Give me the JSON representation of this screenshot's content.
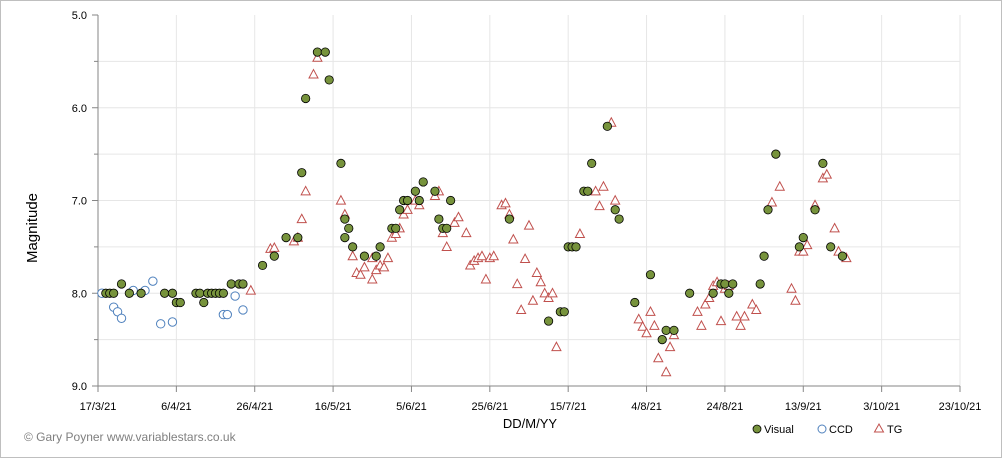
{
  "credit": "© Gary Poyner www.variablestars.co.uk",
  "chart_data": {
    "type": "scatter",
    "title": "",
    "xlabel": "DD/M/YY",
    "ylabel": "Magnitude",
    "x_axis_type": "date",
    "xlim": [
      "2021-03-17",
      "2021-10-23"
    ],
    "ylim": [
      9.0,
      5.0
    ],
    "y_inverted": true,
    "x_ticks": [
      {
        "date": "2021-03-17",
        "label": "17/3/21"
      },
      {
        "date": "2021-04-06",
        "label": "6/4/21"
      },
      {
        "date": "2021-04-26",
        "label": "26/4/21"
      },
      {
        "date": "2021-05-16",
        "label": "16/5/21"
      },
      {
        "date": "2021-06-05",
        "label": "5/6/21"
      },
      {
        "date": "2021-06-25",
        "label": "25/6/21"
      },
      {
        "date": "2021-07-15",
        "label": "15/7/21"
      },
      {
        "date": "2021-08-04",
        "label": "4/8/21"
      },
      {
        "date": "2021-08-24",
        "label": "24/8/21"
      },
      {
        "date": "2021-09-13",
        "label": "13/9/21"
      },
      {
        "date": "2021-10-03",
        "label": "3/10/21"
      },
      {
        "date": "2021-10-23",
        "label": "23/10/21"
      }
    ],
    "y_ticks": [
      {
        "value": 5.0,
        "label": "5.0"
      },
      {
        "value": 6.0,
        "label": "6.0"
      },
      {
        "value": 7.0,
        "label": "7.0"
      },
      {
        "value": 8.0,
        "label": "8.0"
      },
      {
        "value": 9.0,
        "label": "9.0"
      }
    ],
    "grid": true,
    "legend_position": "bottom-right",
    "colors": {
      "visual_fill": "#77933c",
      "visual_edge": "#000000",
      "ccd_edge": "#4f81bd",
      "tg_edge": "#c0504d",
      "grid": "#e6e6e6"
    },
    "series": [
      {
        "name": "Visual",
        "marker": "filled-circle",
        "points": [
          [
            "2021-03-19",
            8.0
          ],
          [
            "2021-03-20",
            8.0
          ],
          [
            "2021-03-21",
            8.0
          ],
          [
            "2021-03-23",
            7.9
          ],
          [
            "2021-03-25",
            8.0
          ],
          [
            "2021-03-28",
            8.0
          ],
          [
            "2021-04-03",
            8.0
          ],
          [
            "2021-04-05",
            8.0
          ],
          [
            "2021-04-06",
            8.1
          ],
          [
            "2021-04-07",
            8.1
          ],
          [
            "2021-04-11",
            8.0
          ],
          [
            "2021-04-12",
            8.0
          ],
          [
            "2021-04-13",
            8.1
          ],
          [
            "2021-04-14",
            8.0
          ],
          [
            "2021-04-15",
            8.0
          ],
          [
            "2021-04-16",
            8.0
          ],
          [
            "2021-04-17",
            8.0
          ],
          [
            "2021-04-18",
            8.0
          ],
          [
            "2021-04-20",
            7.9
          ],
          [
            "2021-04-22",
            7.9
          ],
          [
            "2021-04-23",
            7.9
          ],
          [
            "2021-04-28",
            7.7
          ],
          [
            "2021-05-01",
            7.6
          ],
          [
            "2021-05-04",
            7.4
          ],
          [
            "2021-05-07",
            7.4
          ],
          [
            "2021-05-08",
            6.7
          ],
          [
            "2021-05-09",
            5.9
          ],
          [
            "2021-05-12",
            5.4
          ],
          [
            "2021-05-14",
            5.4
          ],
          [
            "2021-05-15",
            5.7
          ],
          [
            "2021-05-18",
            6.6
          ],
          [
            "2021-05-19",
            7.2
          ],
          [
            "2021-05-19",
            7.4
          ],
          [
            "2021-05-20",
            7.3
          ],
          [
            "2021-05-21",
            7.5
          ],
          [
            "2021-05-24",
            7.6
          ],
          [
            "2021-05-27",
            7.6
          ],
          [
            "2021-05-28",
            7.5
          ],
          [
            "2021-05-31",
            7.3
          ],
          [
            "2021-06-01",
            7.3
          ],
          [
            "2021-06-02",
            7.1
          ],
          [
            "2021-06-03",
            7.0
          ],
          [
            "2021-06-04",
            7.0
          ],
          [
            "2021-06-06",
            6.9
          ],
          [
            "2021-06-07",
            7.0
          ],
          [
            "2021-06-08",
            6.8
          ],
          [
            "2021-06-11",
            6.9
          ],
          [
            "2021-06-12",
            7.2
          ],
          [
            "2021-06-13",
            7.3
          ],
          [
            "2021-06-14",
            7.3
          ],
          [
            "2021-06-15",
            7.0
          ],
          [
            "2021-06-30",
            7.2
          ],
          [
            "2021-07-10",
            8.3
          ],
          [
            "2021-07-13",
            8.2
          ],
          [
            "2021-07-14",
            8.2
          ],
          [
            "2021-07-15",
            7.5
          ],
          [
            "2021-07-16",
            7.5
          ],
          [
            "2021-07-17",
            7.5
          ],
          [
            "2021-07-19",
            6.9
          ],
          [
            "2021-07-20",
            6.9
          ],
          [
            "2021-07-21",
            6.6
          ],
          [
            "2021-07-25",
            6.2
          ],
          [
            "2021-07-27",
            7.1
          ],
          [
            "2021-07-28",
            7.2
          ],
          [
            "2021-08-01",
            8.1
          ],
          [
            "2021-08-05",
            7.8
          ],
          [
            "2021-08-08",
            8.5
          ],
          [
            "2021-08-09",
            8.4
          ],
          [
            "2021-08-11",
            8.4
          ],
          [
            "2021-08-15",
            8.0
          ],
          [
            "2021-08-21",
            8.0
          ],
          [
            "2021-08-23",
            7.9
          ],
          [
            "2021-08-24",
            7.9
          ],
          [
            "2021-08-25",
            8.0
          ],
          [
            "2021-08-26",
            7.9
          ],
          [
            "2021-09-02",
            7.9
          ],
          [
            "2021-09-03",
            7.6
          ],
          [
            "2021-09-04",
            7.1
          ],
          [
            "2021-09-06",
            6.5
          ],
          [
            "2021-09-12",
            7.5
          ],
          [
            "2021-09-13",
            7.4
          ],
          [
            "2021-09-16",
            7.1
          ],
          [
            "2021-09-18",
            6.6
          ],
          [
            "2021-09-20",
            7.5
          ],
          [
            "2021-09-23",
            7.6
          ]
        ]
      },
      {
        "name": "CCD",
        "marker": "open-circle",
        "points": [
          [
            "2021-03-18",
            8.0
          ],
          [
            "2021-03-21",
            8.15
          ],
          [
            "2021-03-22",
            8.2
          ],
          [
            "2021-03-23",
            8.27
          ],
          [
            "2021-03-26",
            7.97
          ],
          [
            "2021-03-29",
            7.97
          ],
          [
            "2021-03-31",
            7.87
          ],
          [
            "2021-04-02",
            8.33
          ],
          [
            "2021-04-05",
            8.31
          ],
          [
            "2021-04-18",
            8.23
          ],
          [
            "2021-04-19",
            8.23
          ],
          [
            "2021-04-21",
            8.03
          ],
          [
            "2021-04-23",
            8.18
          ]
        ]
      },
      {
        "name": "TG",
        "marker": "open-triangle",
        "points": [
          [
            "2021-04-25",
            7.97
          ],
          [
            "2021-04-30",
            7.52
          ],
          [
            "2021-05-01",
            7.51
          ],
          [
            "2021-05-06",
            7.44
          ],
          [
            "2021-05-07",
            7.4
          ],
          [
            "2021-05-08",
            7.2
          ],
          [
            "2021-05-09",
            6.9
          ],
          [
            "2021-05-11",
            5.64
          ],
          [
            "2021-05-12",
            5.46
          ],
          [
            "2021-05-18",
            7.0
          ],
          [
            "2021-05-19",
            7.15
          ],
          [
            "2021-05-21",
            7.6
          ],
          [
            "2021-05-22",
            7.78
          ],
          [
            "2021-05-23",
            7.8
          ],
          [
            "2021-05-24",
            7.72
          ],
          [
            "2021-05-26",
            7.62
          ],
          [
            "2021-05-26",
            7.85
          ],
          [
            "2021-05-27",
            7.75
          ],
          [
            "2021-05-28",
            7.7
          ],
          [
            "2021-05-29",
            7.72
          ],
          [
            "2021-05-30",
            7.62
          ],
          [
            "2021-05-31",
            7.4
          ],
          [
            "2021-06-01",
            7.36
          ],
          [
            "2021-06-02",
            7.3
          ],
          [
            "2021-06-03",
            7.15
          ],
          [
            "2021-06-04",
            7.1
          ],
          [
            "2021-06-06",
            7.0
          ],
          [
            "2021-06-07",
            7.05
          ],
          [
            "2021-06-11",
            6.95
          ],
          [
            "2021-06-12",
            6.9
          ],
          [
            "2021-06-13",
            7.35
          ],
          [
            "2021-06-14",
            7.5
          ],
          [
            "2021-06-16",
            7.24
          ],
          [
            "2021-06-17",
            7.18
          ],
          [
            "2021-06-19",
            7.35
          ],
          [
            "2021-06-20",
            7.7
          ],
          [
            "2021-06-21",
            7.65
          ],
          [
            "2021-06-22",
            7.62
          ],
          [
            "2021-06-23",
            7.6
          ],
          [
            "2021-06-24",
            7.85
          ],
          [
            "2021-06-25",
            7.62
          ],
          [
            "2021-06-26",
            7.6
          ],
          [
            "2021-06-28",
            7.05
          ],
          [
            "2021-06-29",
            7.03
          ],
          [
            "2021-06-30",
            7.15
          ],
          [
            "2021-07-01",
            7.42
          ],
          [
            "2021-07-02",
            7.9
          ],
          [
            "2021-07-03",
            8.18
          ],
          [
            "2021-07-04",
            7.63
          ],
          [
            "2021-07-05",
            7.27
          ],
          [
            "2021-07-06",
            8.08
          ],
          [
            "2021-07-07",
            7.78
          ],
          [
            "2021-07-08",
            7.88
          ],
          [
            "2021-07-09",
            8.0
          ],
          [
            "2021-07-10",
            8.05
          ],
          [
            "2021-07-11",
            8.0
          ],
          [
            "2021-07-12",
            8.58
          ],
          [
            "2021-07-18",
            7.36
          ],
          [
            "2021-07-22",
            6.9
          ],
          [
            "2021-07-23",
            7.06
          ],
          [
            "2021-07-24",
            6.85
          ],
          [
            "2021-07-26",
            6.16
          ],
          [
            "2021-07-27",
            7.0
          ],
          [
            "2021-08-02",
            8.28
          ],
          [
            "2021-08-03",
            8.36
          ],
          [
            "2021-08-04",
            8.43
          ],
          [
            "2021-08-05",
            8.2
          ],
          [
            "2021-08-06",
            8.35
          ],
          [
            "2021-08-07",
            8.7
          ],
          [
            "2021-08-09",
            8.85
          ],
          [
            "2021-08-10",
            8.58
          ],
          [
            "2021-08-11",
            8.45
          ],
          [
            "2021-08-17",
            8.2
          ],
          [
            "2021-08-18",
            8.35
          ],
          [
            "2021-08-19",
            8.12
          ],
          [
            "2021-08-20",
            8.05
          ],
          [
            "2021-08-21",
            7.92
          ],
          [
            "2021-08-22",
            7.88
          ],
          [
            "2021-08-23",
            8.3
          ],
          [
            "2021-08-24",
            7.95
          ],
          [
            "2021-08-25",
            7.92
          ],
          [
            "2021-08-27",
            8.25
          ],
          [
            "2021-08-28",
            8.35
          ],
          [
            "2021-08-29",
            8.25
          ],
          [
            "2021-08-31",
            8.12
          ],
          [
            "2021-09-01",
            8.18
          ],
          [
            "2021-09-05",
            7.02
          ],
          [
            "2021-09-07",
            6.85
          ],
          [
            "2021-09-10",
            7.95
          ],
          [
            "2021-09-11",
            8.08
          ],
          [
            "2021-09-12",
            7.55
          ],
          [
            "2021-09-13",
            7.55
          ],
          [
            "2021-09-14",
            7.48
          ],
          [
            "2021-09-16",
            7.05
          ],
          [
            "2021-09-18",
            6.76
          ],
          [
            "2021-09-19",
            6.72
          ],
          [
            "2021-09-21",
            7.3
          ],
          [
            "2021-09-22",
            7.55
          ],
          [
            "2021-09-24",
            7.62
          ]
        ]
      }
    ]
  }
}
